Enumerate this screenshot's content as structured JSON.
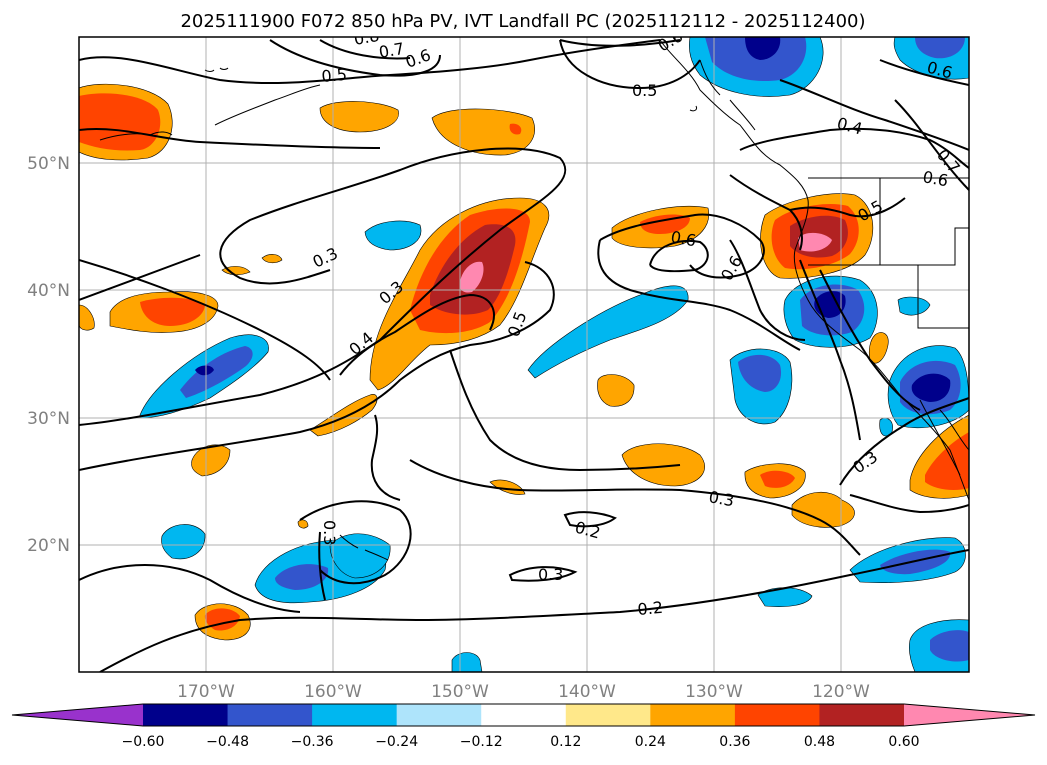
{
  "title": "2025111900 F072 850 hPa PV, IVT Landfall PC (2025112112 - 2025112400)",
  "axes": {
    "lat_labels": [
      "50°N",
      "40°N",
      "30°N",
      "20°N"
    ],
    "lon_labels": [
      "170°W",
      "160°W",
      "150°W",
      "140°W",
      "130°W",
      "120°W"
    ]
  },
  "colorbar": {
    "ticks": [
      "−0.60",
      "−0.48",
      "−0.36",
      "−0.24",
      "−0.12",
      "0.12",
      "0.24",
      "0.36",
      "0.48",
      "0.60"
    ],
    "colors": [
      "#9932cc",
      "#00008b",
      "#3355cc",
      "#00b7f0",
      "#aee4fb",
      "#ffffff",
      "#ffe88a",
      "#ffa500",
      "#ff4400",
      "#b22222",
      "#ff88b0"
    ]
  },
  "contour_labels": [
    "0.8",
    "0.7",
    "0.6",
    "0.5",
    "0.5",
    "0.6",
    "0.4",
    "0.7",
    "0.6",
    "0.5",
    "0.6",
    "0.6",
    "0.3",
    "0.3",
    "0.4",
    "0.5",
    "0.3",
    "0.3",
    "0.2",
    "0.3",
    "0.3",
    "0.2",
    "0.6"
  ]
}
